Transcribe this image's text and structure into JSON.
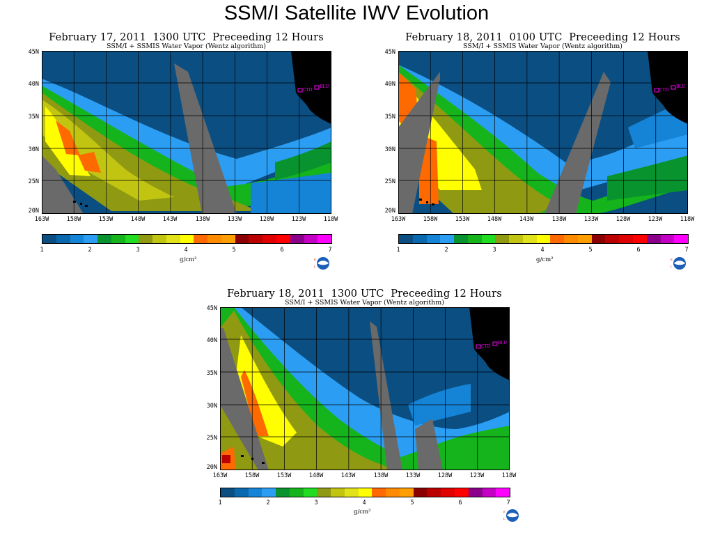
{
  "slide": {
    "title": "SSM/I Satellite IWV Evolution"
  },
  "common": {
    "subtitle": "SSM/I + SSMIS Water Vapor (Wentz algorithm)",
    "lat_labels": [
      "45N",
      "40N",
      "35N",
      "30N",
      "25N",
      "20N"
    ],
    "lon_labels": [
      "163W",
      "158W",
      "153W",
      "148W",
      "143W",
      "138W",
      "133W",
      "128W",
      "123W",
      "118W"
    ],
    "colorbar_ticks": [
      "1",
      "2",
      "3",
      "4",
      "5",
      "6",
      "7"
    ],
    "unit": "g/cm²",
    "site_labels": [
      "CTD",
      "BLU"
    ],
    "colorbar_colors": [
      "#0b4e82",
      "#0a68ae",
      "#1684d6",
      "#2b9ef4",
      "#08932f",
      "#15b41c",
      "#22dc22",
      "#8f9a12",
      "#c2c412",
      "#e2e21a",
      "#ffff00",
      "#ff6a00",
      "#ff8a00",
      "#ff9e00",
      "#8b0000",
      "#bb0000",
      "#e00000",
      "#ff0000",
      "#8b008b",
      "#c400c4",
      "#ff00ff"
    ]
  },
  "panels": [
    {
      "title": "February 17, 2011  1300 UTC  Preceeding 12 Hours"
    },
    {
      "title": "February 18, 2011  0100 UTC  Preceeding 12 Hours"
    },
    {
      "title": "February 18, 2011  1300 UTC  Preceeding 12 Hours"
    }
  ]
}
